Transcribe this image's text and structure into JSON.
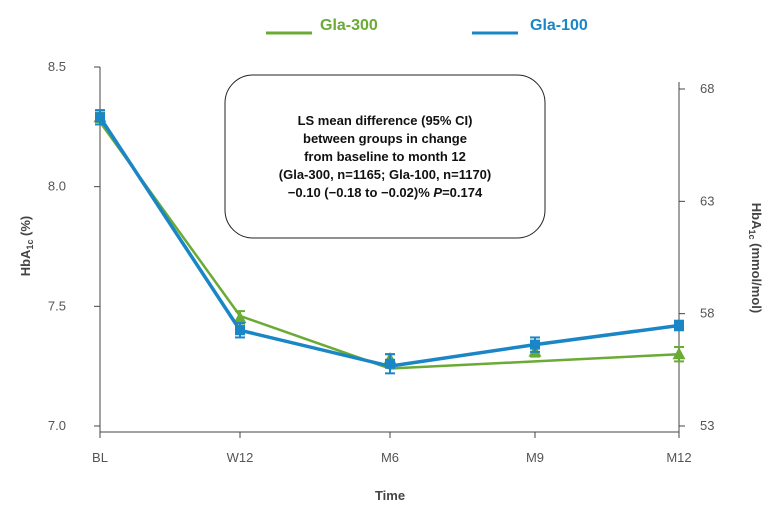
{
  "chart_data": {
    "type": "line",
    "categories": [
      "BL",
      "W12",
      "M6",
      "M9",
      "M12"
    ],
    "xlabel": "Time",
    "ylabel": "HbA",
    "ylabel_sub": "1c",
    "ylabel_unit": " (%)",
    "y2label": "HbA",
    "y2label_sub": "1c",
    "y2label_unit": " (mmol/mol)",
    "ylim": [
      7.0,
      8.5
    ],
    "yticks": [
      "8.5",
      "8.0",
      "7.5",
      "7.0"
    ],
    "y2lim": [
      53,
      68
    ],
    "y2ticks": [
      "68",
      "63",
      "58",
      "53"
    ],
    "grid": false,
    "legend_position": "top-center",
    "series": [
      {
        "name": "Gla-300",
        "color": "#6aaa35",
        "marker": "triangle",
        "values": [
          8.29,
          7.45,
          7.28,
          7.31,
          7.3
        ],
        "line_values": [
          8.27,
          7.46,
          7.24,
          7.27,
          7.3
        ],
        "error": [
          0.02,
          0.03,
          0.02,
          0.02,
          0.03
        ]
      },
      {
        "name": "Gla-100",
        "color": "#1a86c5",
        "marker": "square",
        "values": [
          8.29,
          7.4,
          7.26,
          7.34,
          7.42
        ],
        "line_values": [
          8.29,
          7.4,
          7.25,
          7.34,
          7.42
        ],
        "error": [
          0.03,
          0.03,
          0.04,
          0.03,
          0.02
        ]
      }
    ],
    "annotation": {
      "lines": [
        "LS mean difference (95% CI)",
        "between groups in change",
        "from baseline to month 12",
        "(Gla-300, n=1165; Gla-100, n=1170)"
      ],
      "last_line_value": "−0.10 (−0.18 to −0.02)% ",
      "last_line_p_label": "P",
      "last_line_p_value": "=0.174"
    }
  }
}
